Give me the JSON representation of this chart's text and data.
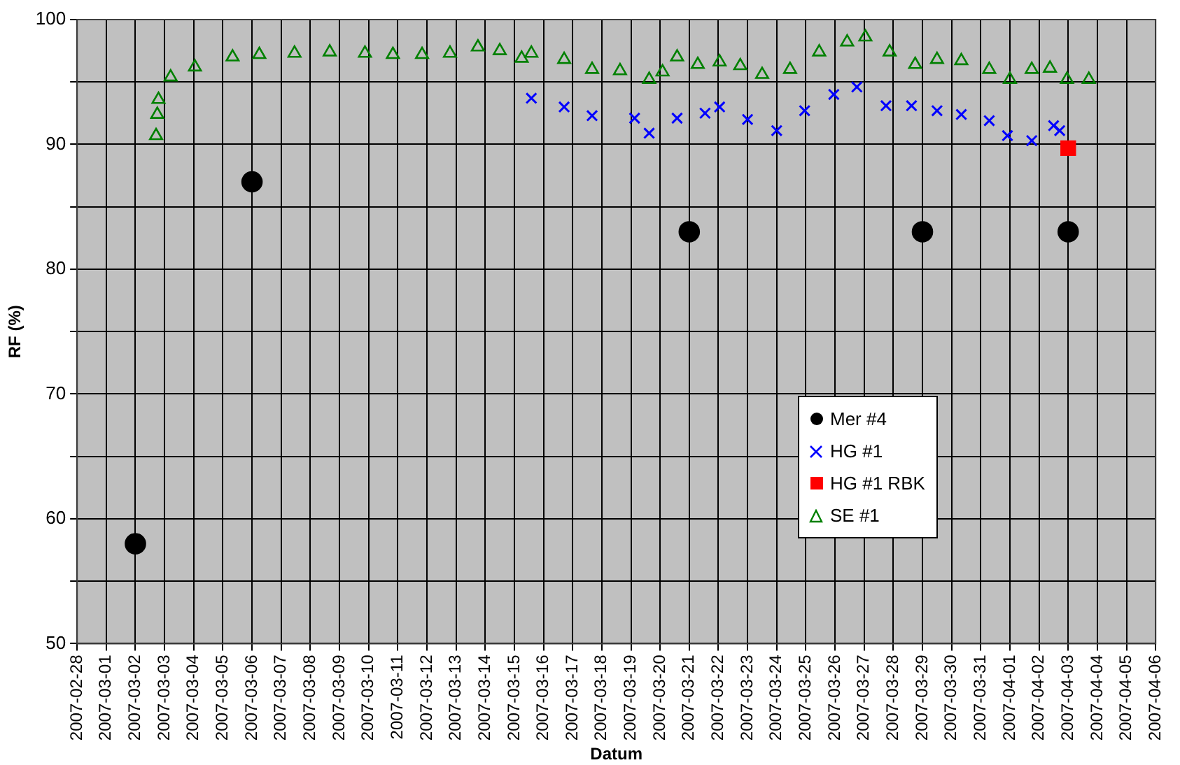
{
  "chart_data": {
    "type": "scatter",
    "xlabel": "Datum",
    "ylabel": "RF (%)",
    "xlim": [
      "2007-02-28",
      "2007-04-06"
    ],
    "xticks": [
      "2007-02-28",
      "2007-03-01",
      "2007-03-02",
      "2007-03-03",
      "2007-03-04",
      "2007-03-05",
      "2007-03-06",
      "2007-03-07",
      "2007-03-08",
      "2007-03-09",
      "2007-03-10",
      "2007-03-11",
      "2007-03-12",
      "2007-03-13",
      "2007-03-14",
      "2007-03-15",
      "2007-03-16",
      "2007-03-17",
      "2007-03-18",
      "2007-03-19",
      "2007-03-20",
      "2007-03-21",
      "2007-03-22",
      "2007-03-23",
      "2007-03-24",
      "2007-03-25",
      "2007-03-26",
      "2007-03-27",
      "2007-03-28",
      "2007-03-29",
      "2007-03-30",
      "2007-03-31",
      "2007-04-01",
      "2007-04-02",
      "2007-04-03",
      "2007-04-04",
      "2007-04-05",
      "2007-04-06"
    ],
    "ylim": [
      50,
      100
    ],
    "yticks": [
      50,
      {
        "value": 55,
        "label": null
      },
      60,
      {
        "value": 65,
        "label": null
      },
      70,
      {
        "value": 75,
        "label": null
      },
      80,
      {
        "value": 85,
        "label": null
      },
      90,
      {
        "value": 95,
        "label": null
      },
      100
    ],
    "grid": true,
    "legend": "right",
    "series": [
      {
        "name": "Mer #4",
        "color": "#000000",
        "marker": "circle",
        "x": [
          "2007-03-02",
          "2007-03-06",
          "2007-03-21",
          "2007-03-29",
          "2007-04-03"
        ],
        "values": [
          58,
          87,
          83,
          83,
          83
        ]
      },
      {
        "name": "HG #1",
        "color": "#0000ff",
        "marker": "cross",
        "x": [
          "2007-03-15T14:00",
          "2007-03-16T17:00",
          "2007-03-17T16:00",
          "2007-03-19T03:00",
          "2007-03-19T15:00",
          "2007-03-20T14:00",
          "2007-03-21T13:00",
          "2007-03-22T01:00",
          "2007-03-23T00:00",
          "2007-03-24T00:00",
          "2007-03-24T23:00",
          "2007-03-25T23:00",
          "2007-03-26T18:00",
          "2007-03-27T18:00",
          "2007-03-28T15:00",
          "2007-03-29T12:00",
          "2007-03-30T08:00",
          "2007-03-31T07:00",
          "2007-03-31T22:00",
          "2007-04-01T18:00",
          "2007-04-02T12:00",
          "2007-04-02T17:00"
        ],
        "values": [
          93.7,
          93.0,
          92.3,
          92.1,
          90.9,
          92.1,
          92.5,
          93.0,
          92.0,
          91.1,
          92.7,
          94.0,
          94.6,
          93.1,
          93.1,
          92.7,
          92.4,
          91.9,
          90.7,
          90.3,
          91.5,
          91.1
        ]
      },
      {
        "name": "HG #1 RBK",
        "color": "#ff0000",
        "marker": "square",
        "x": [
          "2007-04-03"
        ],
        "values": [
          89.7
        ]
      },
      {
        "name": "SE #1",
        "color": "#008000",
        "marker": "triangle",
        "x": [
          "2007-03-02T17:00",
          "2007-03-02T18:00",
          "2007-03-02T19:00",
          "2007-03-03T05:00",
          "2007-03-04T01:00",
          "2007-03-05T08:00",
          "2007-03-06T06:00",
          "2007-03-07T11:00",
          "2007-03-08T16:00",
          "2007-03-09T21:00",
          "2007-03-10T20:00",
          "2007-03-11T20:00",
          "2007-03-12T19:00",
          "2007-03-13T18:00",
          "2007-03-14T12:00",
          "2007-03-15T06:00",
          "2007-03-15T14:00",
          "2007-03-16T17:00",
          "2007-03-17T16:00",
          "2007-03-18T15:00",
          "2007-03-19T15:00",
          "2007-03-20T02:00",
          "2007-03-20T14:00",
          "2007-03-21T07:00",
          "2007-03-22T01:00",
          "2007-03-22T18:00",
          "2007-03-23T12:00",
          "2007-03-24T11:00",
          "2007-03-25T11:00",
          "2007-03-26T10:00",
          "2007-03-27T01:00",
          "2007-03-27T21:00",
          "2007-03-28T18:00",
          "2007-03-29T12:00",
          "2007-03-30T08:00",
          "2007-03-31T07:00",
          "2007-04-01T00:00",
          "2007-04-01T18:00",
          "2007-04-02T09:00",
          "2007-04-02T23:00",
          "2007-04-03T17:00"
        ],
        "values": [
          90.7,
          92.4,
          93.6,
          95.4,
          96.2,
          97.0,
          97.2,
          97.3,
          97.4,
          97.3,
          97.2,
          97.2,
          97.3,
          97.8,
          97.5,
          96.9,
          97.3,
          96.8,
          96.0,
          95.9,
          95.2,
          95.8,
          97.0,
          96.4,
          96.6,
          96.3,
          95.6,
          96.0,
          97.4,
          98.2,
          98.6,
          97.4,
          96.4,
          96.8,
          96.7,
          96.0,
          95.2,
          96.0,
          96.1,
          95.2,
          95.2
        ]
      }
    ]
  }
}
